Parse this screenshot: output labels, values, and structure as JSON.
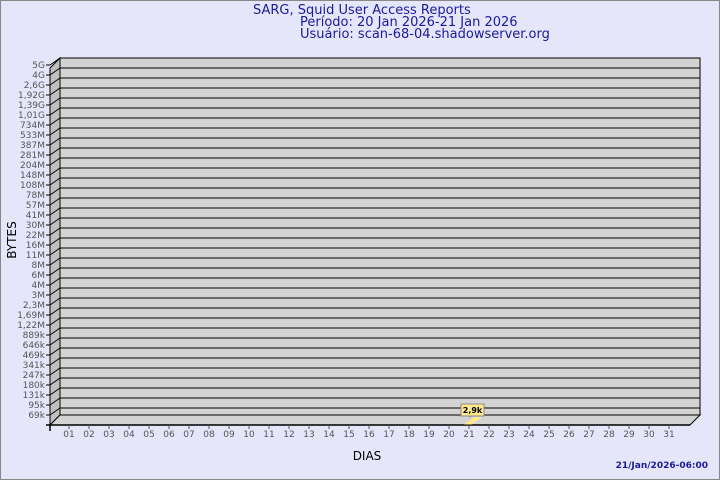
{
  "title": "SARG, Squid User Access Reports",
  "period": "Período: 20 Jan 2026-21 Jan 2026",
  "user": "Usuário: scan-68-04.shadowserver.org",
  "footer": "21/Jan/2026-06:00",
  "chart_data": {
    "type": "bar",
    "title": "SARG, Squid User Access Reports",
    "xlabel": "DIAS",
    "ylabel": "BYTES",
    "y_scale": "log",
    "y_tick_labels": [
      "5G",
      "4G",
      "2,6G",
      "1,92G",
      "1,39G",
      "1,01G",
      "734M",
      "533M",
      "387M",
      "281M",
      "204M",
      "148M",
      "108M",
      "78M",
      "57M",
      "41M",
      "30M",
      "22M",
      "16M",
      "11M",
      "8M",
      "6M",
      "4M",
      "3M",
      "2,3M",
      "1,69M",
      "1,22M",
      "889k",
      "646k",
      "469k",
      "341k",
      "247k",
      "180k",
      "131k",
      "95k",
      "69k"
    ],
    "categories": [
      "01",
      "02",
      "03",
      "04",
      "05",
      "06",
      "07",
      "08",
      "09",
      "10",
      "11",
      "12",
      "13",
      "14",
      "15",
      "16",
      "17",
      "18",
      "19",
      "20",
      "21",
      "22",
      "23",
      "24",
      "25",
      "26",
      "27",
      "28",
      "29",
      "30",
      "31"
    ],
    "bars": [
      {
        "day": "21",
        "value": 2900,
        "label": "2,9k"
      }
    ],
    "grid": true,
    "colors": {
      "wall": "#d3d3d3",
      "side": "#c0c0c0",
      "bar": "#ffe98a",
      "text": "#1a1a9c",
      "tick": "#555555"
    }
  }
}
